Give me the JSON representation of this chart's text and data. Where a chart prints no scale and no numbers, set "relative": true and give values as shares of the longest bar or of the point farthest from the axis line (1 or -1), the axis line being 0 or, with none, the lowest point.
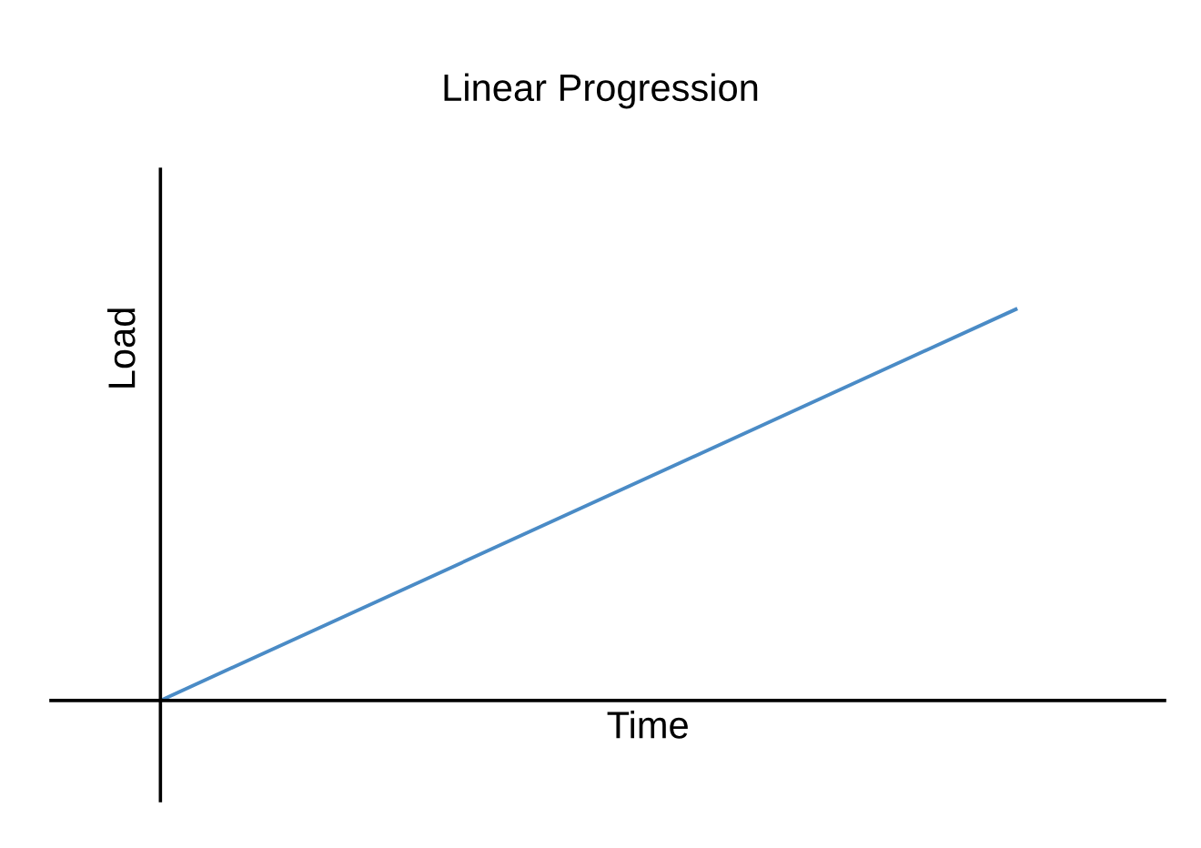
{
  "chart_data": {
    "type": "line",
    "title": "Linear Progression",
    "xlabel": "Time",
    "ylabel": "Load",
    "categories": [
      null,
      null
    ],
    "series": [
      {
        "color": "#4a8bc6",
        "values": [
          0,
          1
        ]
      }
    ],
    "relative": true,
    "tick_labels": false,
    "marker": "none",
    "line_style": "solid"
  }
}
